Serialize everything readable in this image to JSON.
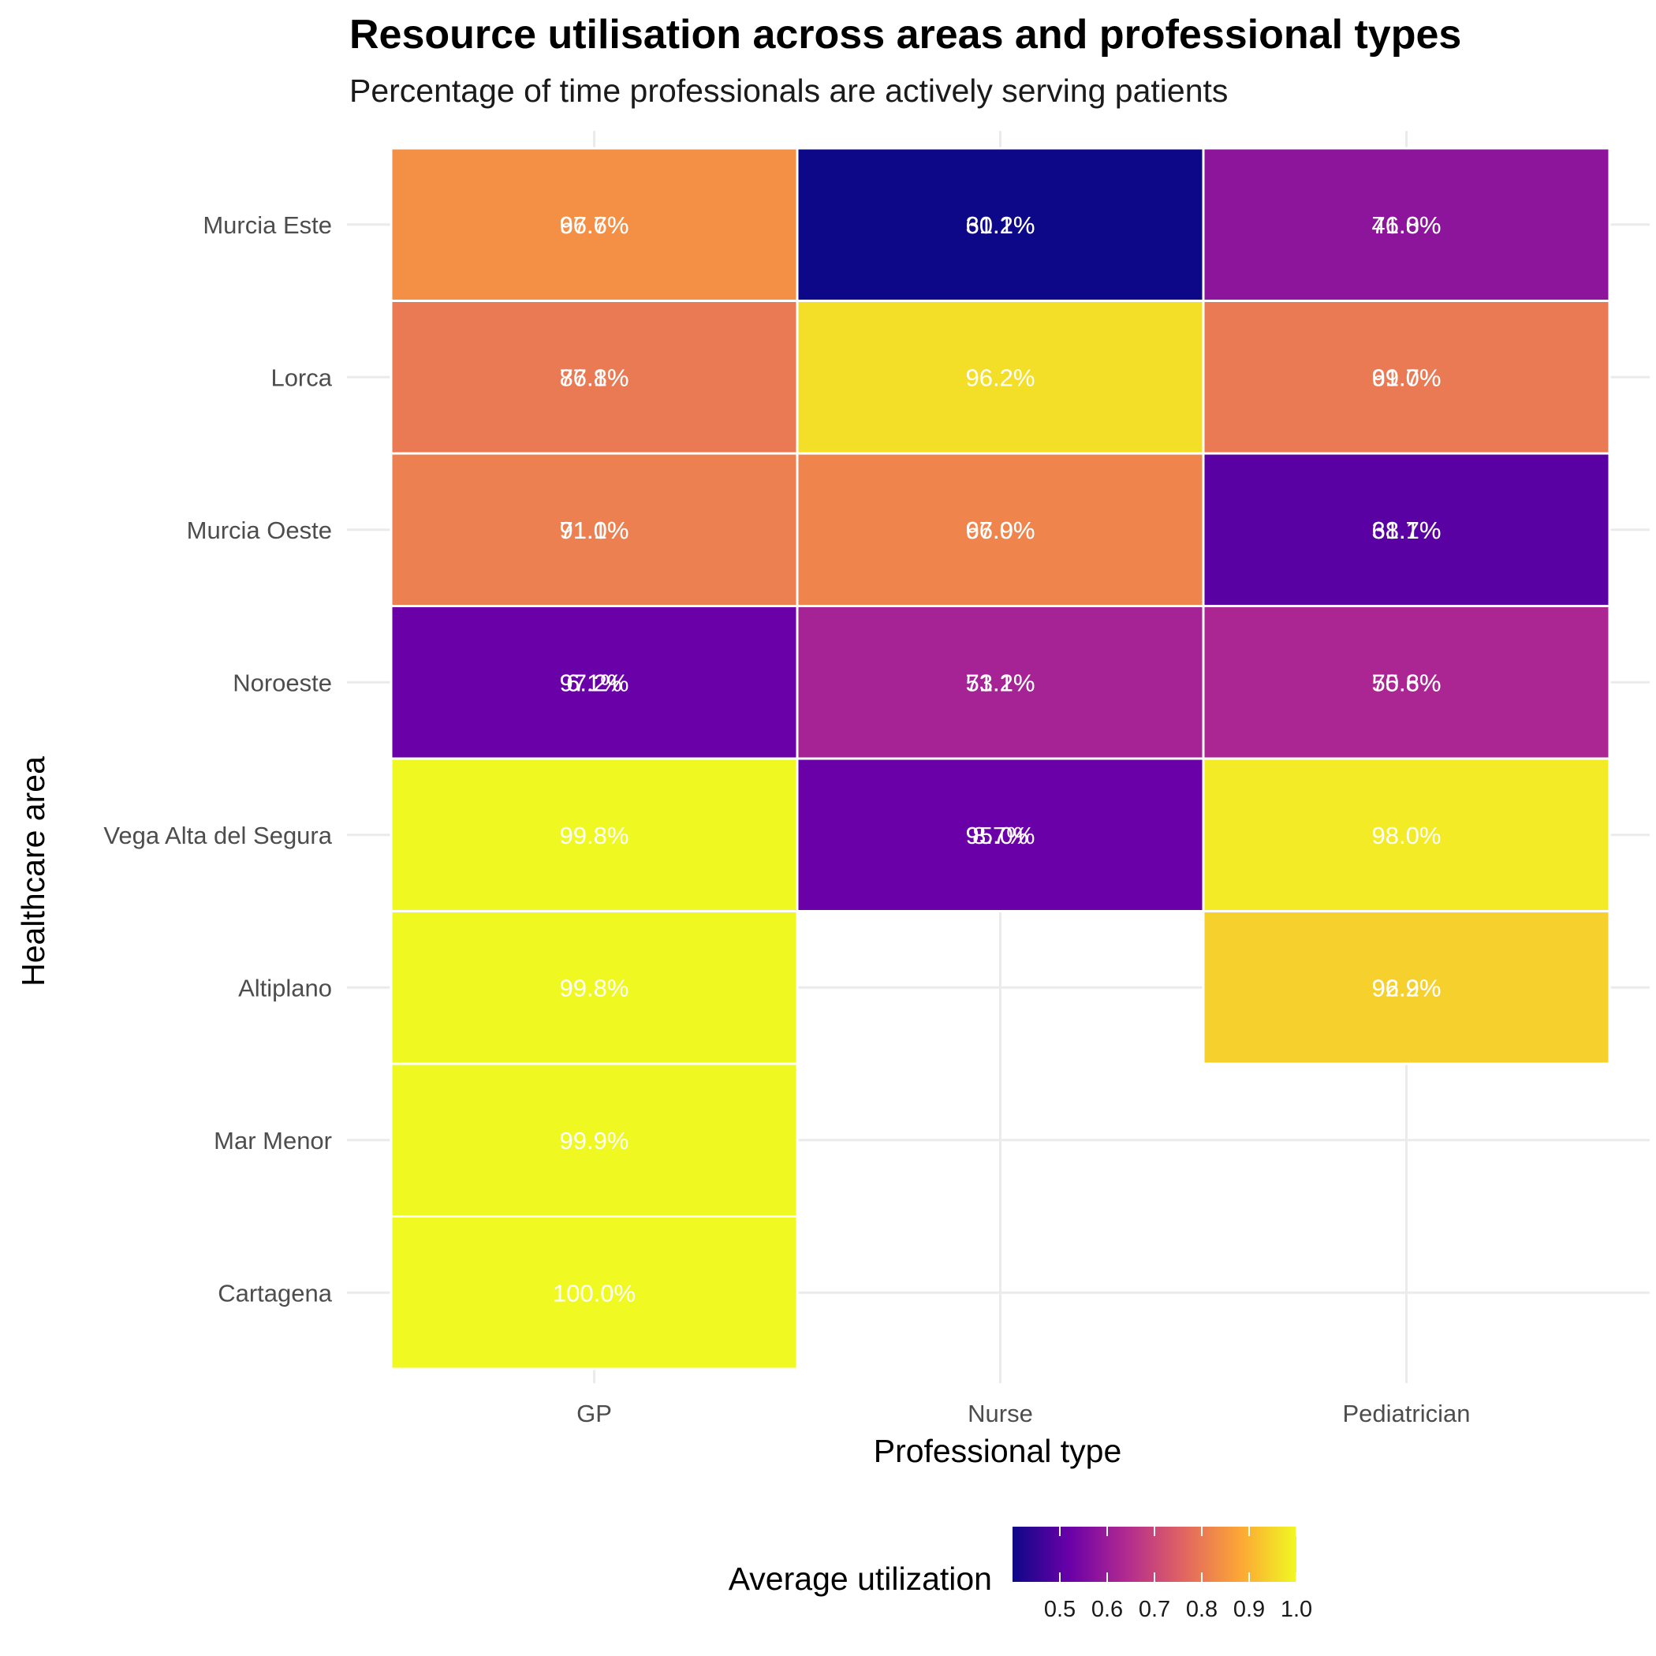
{
  "chart_data": {
    "type": "heatmap",
    "title": "Resource utilisation across areas and professional types",
    "subtitle": "Percentage of time professionals are actively serving patients",
    "xlabel": "Professional type",
    "ylabel": "Healthcare area",
    "x_categories": [
      "GP",
      "Nurse",
      "Pediatrician"
    ],
    "y_categories": [
      "Murcia Este",
      "Lorca",
      "Murcia Oeste",
      "Noroeste",
      "Vega Alta del Segura",
      "Altiplano",
      "Mar Menor",
      "Cartagena"
    ],
    "cells": [
      {
        "x": "GP",
        "y": "Murcia Este",
        "value": 0.84,
        "labels": [
          "97.7%",
          "66.6%"
        ]
      },
      {
        "x": "Nurse",
        "y": "Murcia Este",
        "value": 0.4,
        "labels": [
          "61.1%",
          "30.2%"
        ]
      },
      {
        "x": "Pediatrician",
        "y": "Murcia Este",
        "value": 0.58,
        "labels": [
          "71.8%",
          "46.0%"
        ]
      },
      {
        "x": "GP",
        "y": "Lorca",
        "value": 0.8,
        "labels": [
          "77.8%",
          "86.1%"
        ]
      },
      {
        "x": "Nurse",
        "y": "Lorca",
        "value": 0.962,
        "labels": [
          "96.2%"
        ]
      },
      {
        "x": "Pediatrician",
        "y": "Lorca",
        "value": 0.8,
        "labels": [
          "91.7%",
          "69.0%"
        ]
      },
      {
        "x": "GP",
        "y": "Murcia Oeste",
        "value": 0.81,
        "labels": [
          "91.1%",
          "71.0%"
        ]
      },
      {
        "x": "Nurse",
        "y": "Murcia Oeste",
        "value": 0.82,
        "labels": [
          "97.0%",
          "66.9%"
        ]
      },
      {
        "x": "Pediatrician",
        "y": "Murcia Oeste",
        "value": 0.5,
        "labels": [
          "61.1%",
          "38.7%"
        ]
      },
      {
        "x": "GP",
        "y": "Noroeste",
        "value": 0.52,
        "labels": [
          "97.2%",
          "6.1%"
        ]
      },
      {
        "x": "Nurse",
        "y": "Noroeste",
        "value": 0.62,
        "labels": [
          "71.2%",
          "53.1%"
        ]
      },
      {
        "x": "Pediatrician",
        "y": "Noroeste",
        "value": 0.63,
        "labels": [
          "70.8%",
          "55.6%"
        ]
      },
      {
        "x": "GP",
        "y": "Vega Alta del Segura",
        "value": 0.998,
        "labels": [
          "99.8%"
        ]
      },
      {
        "x": "Nurse",
        "y": "Vega Alta del Segura",
        "value": 0.52,
        "labels": [
          "95.0%",
          "8.7%"
        ]
      },
      {
        "x": "Pediatrician",
        "y": "Vega Alta del Segura",
        "value": 0.98,
        "labels": [
          "98.0%"
        ]
      },
      {
        "x": "GP",
        "y": "Altiplano",
        "value": 0.998,
        "labels": [
          "99.8%"
        ]
      },
      {
        "x": "Pediatrician",
        "y": "Altiplano",
        "value": 0.94,
        "labels": [
          "96.2%",
          "92.9%"
        ]
      },
      {
        "x": "GP",
        "y": "Mar Menor",
        "value": 0.999,
        "labels": [
          "99.9%"
        ]
      },
      {
        "x": "GP",
        "y": "Cartagena",
        "value": 1.0,
        "labels": [
          "100.0%"
        ]
      }
    ],
    "legend": {
      "title": "Average utilization",
      "position": "bottom",
      "palette": "plasma",
      "colors": [
        "#0d0887",
        "#6a00a8",
        "#b12a90",
        "#e16462",
        "#fca636",
        "#f0f921"
      ],
      "range": [
        0.4,
        1.0
      ],
      "ticks": [
        0.5,
        0.6,
        0.7,
        0.8,
        0.9,
        1.0
      ],
      "tick_labels": [
        "0.5",
        "0.6",
        "0.7",
        "0.8",
        "0.9",
        "1.0"
      ]
    },
    "grid": true,
    "label_color": "#ffffff"
  }
}
